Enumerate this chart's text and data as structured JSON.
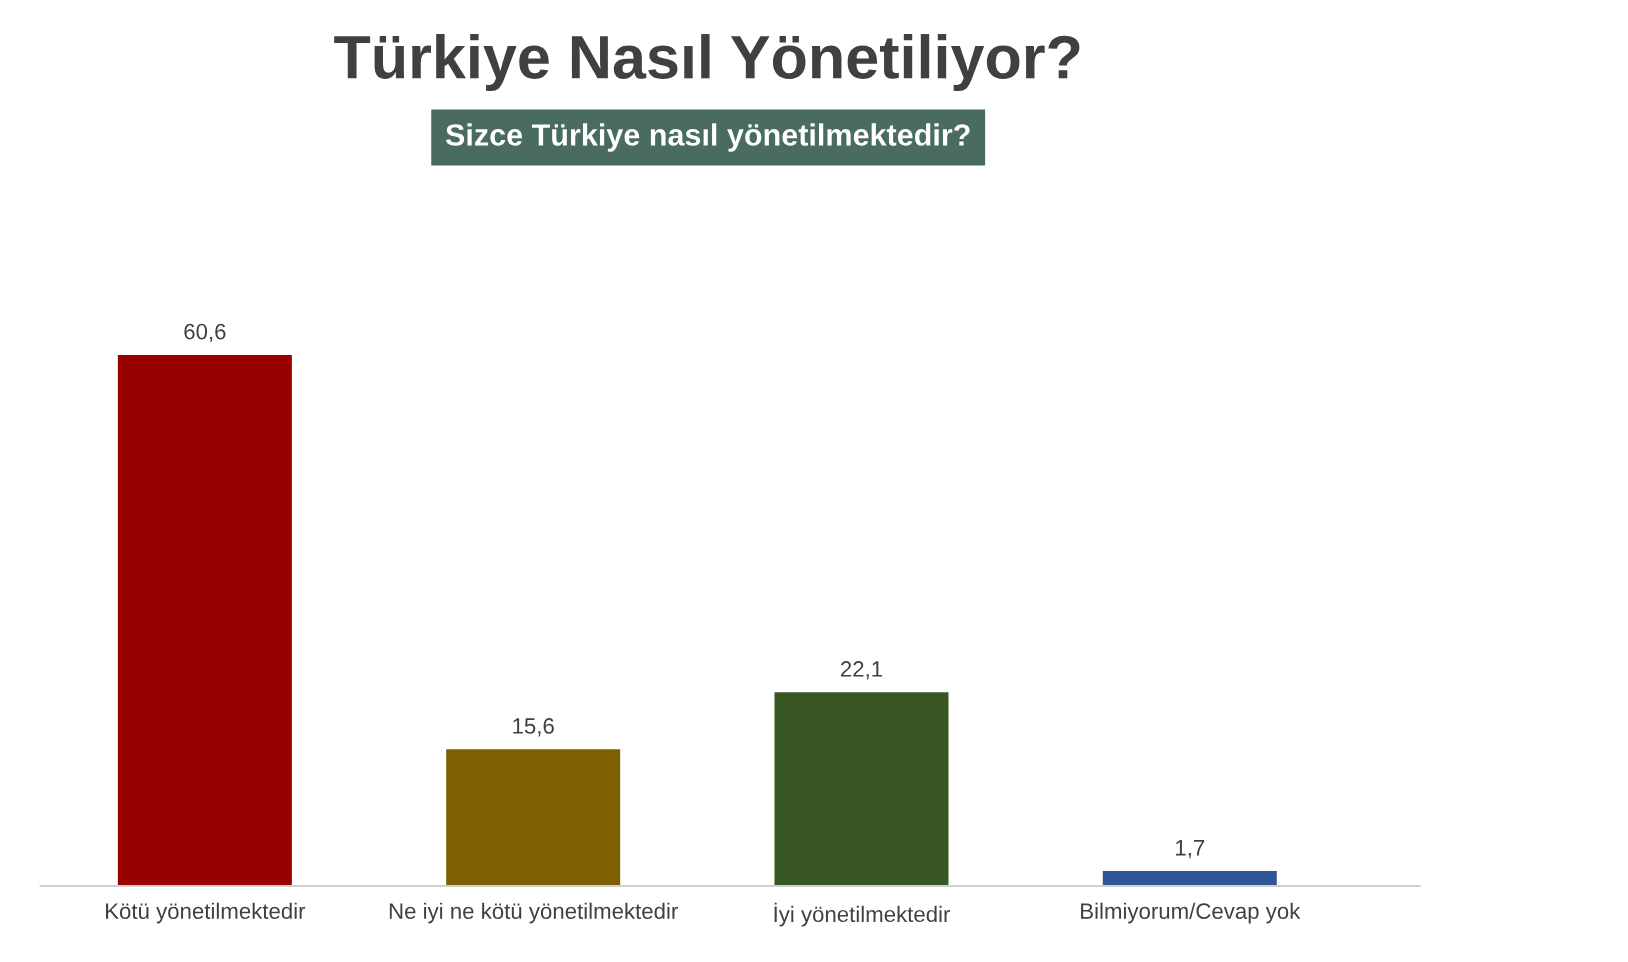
{
  "chart_data": {
    "type": "bar",
    "title": "Türkiye Nasıl Yönetiliyor?",
    "subtitle": "Sizce Türkiye nasıl yönetilmektedir?",
    "categories": [
      "Kötü yönetilmektedir",
      "Ne iyi ne kötü yönetilmektedir",
      "İyi yönetilmektedir",
      "Bilmiyorum/Cevap yok"
    ],
    "values": [
      60.6,
      15.6,
      22.1,
      1.7
    ],
    "value_labels": [
      "60,6",
      "15,6",
      "22,1",
      "1,7"
    ],
    "colors": [
      "#990000",
      "#7f6000",
      "#385723",
      "#2f5597"
    ],
    "grid": false,
    "legend": false
  }
}
